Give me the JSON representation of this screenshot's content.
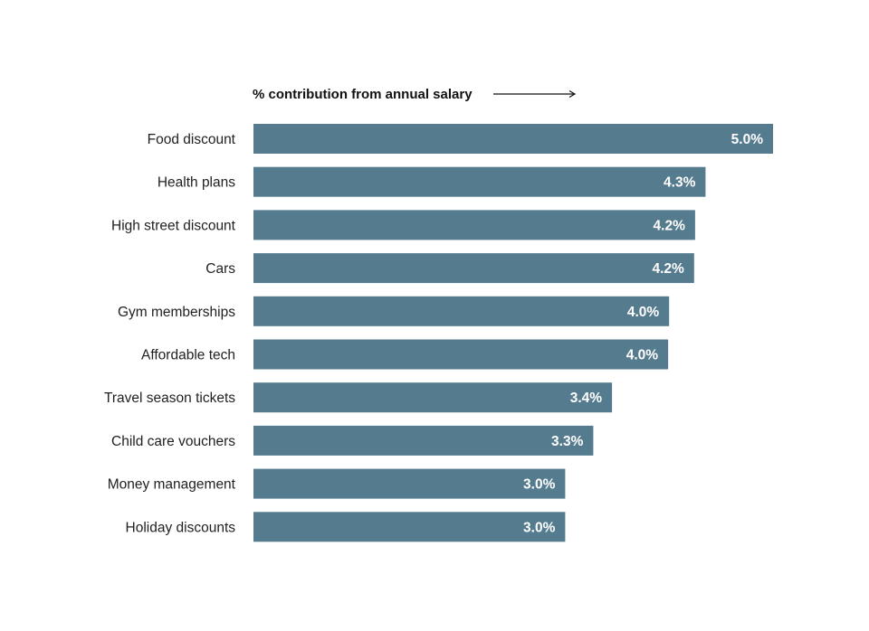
{
  "chart_data": {
    "type": "bar",
    "orientation": "horizontal",
    "axis_title": "% contribution from annual salary",
    "categories": [
      "Food discount",
      "Health plans",
      "High street discount",
      "Cars",
      "Gym memberships",
      "Affordable tech",
      "Travel season tickets",
      "Child care vouchers",
      "Money management",
      "Holiday discounts"
    ],
    "values": [
      5.0,
      4.35,
      4.25,
      4.24,
      4.0,
      3.99,
      3.45,
      3.27,
      3.0,
      3.0
    ],
    "value_labels": [
      "5.0%",
      "4.3%",
      "4.2%",
      "4.2%",
      "4.0%",
      "4.0%",
      "3.4%",
      "3.3%",
      "3.0%",
      "3.0%"
    ],
    "xlim": [
      0,
      5.0
    ],
    "grid": false,
    "legend": "none",
    "bar_color": "#557b8f",
    "label_color": "#ffffff"
  }
}
